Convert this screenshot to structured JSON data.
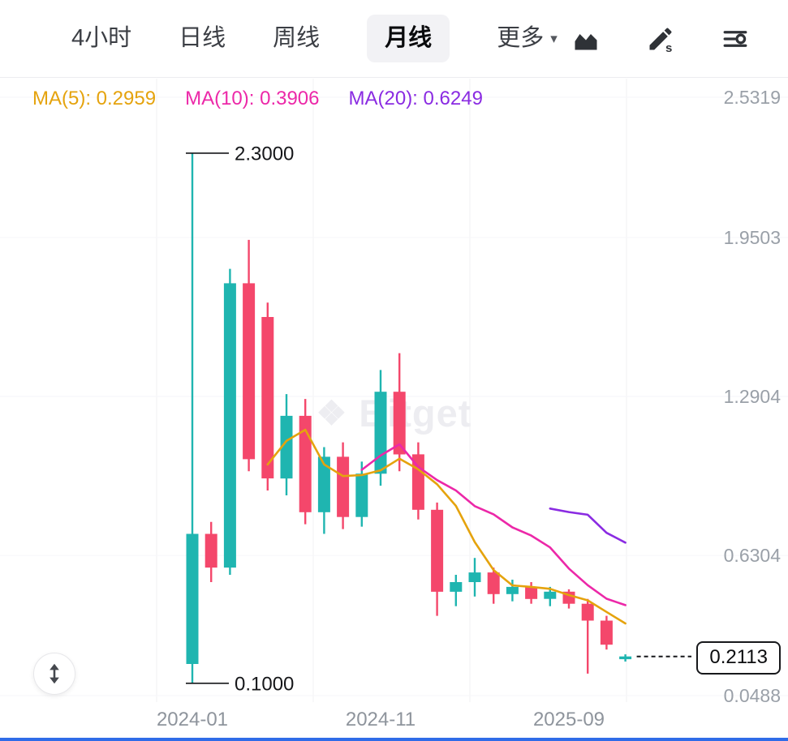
{
  "toolbar": {
    "tabs": [
      {
        "id": "4h",
        "label": "4小时",
        "active": false
      },
      {
        "id": "daily",
        "label": "日线",
        "active": false
      },
      {
        "id": "weekly",
        "label": "周线",
        "active": false
      },
      {
        "id": "monthly",
        "label": "月线",
        "active": true
      },
      {
        "id": "more",
        "label": "更多",
        "active": false,
        "has_dropdown": true
      }
    ],
    "more_caret": "▾",
    "icon_buttons": [
      "chart-style-icon",
      "draw-tools-icon",
      "indicator-settings-icon"
    ]
  },
  "legend": {
    "ma5": "MA(5): 0.2959",
    "ma10": "MA(10): 0.3906",
    "ma20": "MA(20): 0.6249"
  },
  "watermark": "Bitget",
  "current_price": "0.2113",
  "chart_data": {
    "type": "candlestick",
    "title": "",
    "xlabel": "",
    "ylabel": "",
    "timeframe": "月线",
    "grid": true,
    "legend_position": "top-left",
    "ylim": [
      0.0488,
      2.5319
    ],
    "y_axis_ticks": [
      2.5319,
      1.9503,
      1.2904,
      0.6304,
      0.0488
    ],
    "x_axis_ticks": [
      {
        "label": "2024-01",
        "i": 0
      },
      {
        "label": "2024-11",
        "i": 10
      },
      {
        "label": "2025-09",
        "i": 20
      }
    ],
    "up_color": "#1fb5b0",
    "down_color": "#f4476b",
    "ma_lines": [
      {
        "name": "MA(5)",
        "period": 5,
        "value": 0.2959,
        "color": "#e5a30d"
      },
      {
        "name": "MA(10)",
        "period": 10,
        "value": 0.3906,
        "color": "#ec28a8"
      },
      {
        "name": "MA(20)",
        "period": 20,
        "value": 0.6249,
        "color": "#8a2be2"
      }
    ],
    "annotations": [
      {
        "text": "2.3000",
        "price": 2.3
      },
      {
        "text": "0.1000",
        "price": 0.1
      }
    ],
    "current_price": 0.2113,
    "candles": [
      {
        "t": "2024-01",
        "o": 0.18,
        "h": 2.3,
        "l": 0.1,
        "c": 0.72
      },
      {
        "t": "2024-02",
        "o": 0.72,
        "h": 0.77,
        "l": 0.52,
        "c": 0.58
      },
      {
        "t": "2024-03",
        "o": 0.58,
        "h": 1.82,
        "l": 0.55,
        "c": 1.76
      },
      {
        "t": "2024-04",
        "o": 1.76,
        "h": 1.94,
        "l": 0.98,
        "c": 1.03
      },
      {
        "t": "2024-05",
        "o": 1.62,
        "h": 1.68,
        "l": 0.9,
        "c": 0.95
      },
      {
        "t": "2024-06",
        "o": 0.95,
        "h": 1.3,
        "l": 0.88,
        "c": 1.21
      },
      {
        "t": "2024-07",
        "o": 1.21,
        "h": 1.28,
        "l": 0.76,
        "c": 0.81
      },
      {
        "t": "2024-08",
        "o": 0.81,
        "h": 1.08,
        "l": 0.72,
        "c": 1.04
      },
      {
        "t": "2024-09",
        "o": 1.04,
        "h": 1.1,
        "l": 0.74,
        "c": 0.79
      },
      {
        "t": "2024-10",
        "o": 0.79,
        "h": 1.02,
        "l": 0.75,
        "c": 0.97
      },
      {
        "t": "2024-11",
        "o": 0.97,
        "h": 1.4,
        "l": 0.92,
        "c": 1.31
      },
      {
        "t": "2024-12",
        "o": 1.31,
        "h": 1.47,
        "l": 0.98,
        "c": 1.05
      },
      {
        "t": "2025-01",
        "o": 1.05,
        "h": 1.1,
        "l": 0.78,
        "c": 0.82
      },
      {
        "t": "2025-02",
        "o": 0.82,
        "h": 0.85,
        "l": 0.38,
        "c": 0.48
      },
      {
        "t": "2025-03",
        "o": 0.48,
        "h": 0.55,
        "l": 0.42,
        "c": 0.52
      },
      {
        "t": "2025-04",
        "o": 0.52,
        "h": 0.62,
        "l": 0.46,
        "c": 0.56
      },
      {
        "t": "2025-05",
        "o": 0.56,
        "h": 0.58,
        "l": 0.43,
        "c": 0.47
      },
      {
        "t": "2025-06",
        "o": 0.47,
        "h": 0.53,
        "l": 0.44,
        "c": 0.5
      },
      {
        "t": "2025-07",
        "o": 0.5,
        "h": 0.52,
        "l": 0.43,
        "c": 0.45
      },
      {
        "t": "2025-08",
        "o": 0.45,
        "h": 0.5,
        "l": 0.42,
        "c": 0.48
      },
      {
        "t": "2025-09",
        "o": 0.48,
        "h": 0.49,
        "l": 0.41,
        "c": 0.43
      },
      {
        "t": "2025-10",
        "o": 0.43,
        "h": 0.45,
        "l": 0.14,
        "c": 0.36
      },
      {
        "t": "2025-11",
        "o": 0.36,
        "h": 0.38,
        "l": 0.24,
        "c": 0.26
      },
      {
        "t": "2025-12",
        "o": 0.2,
        "h": 0.22,
        "l": 0.19,
        "c": 0.2113
      }
    ]
  }
}
